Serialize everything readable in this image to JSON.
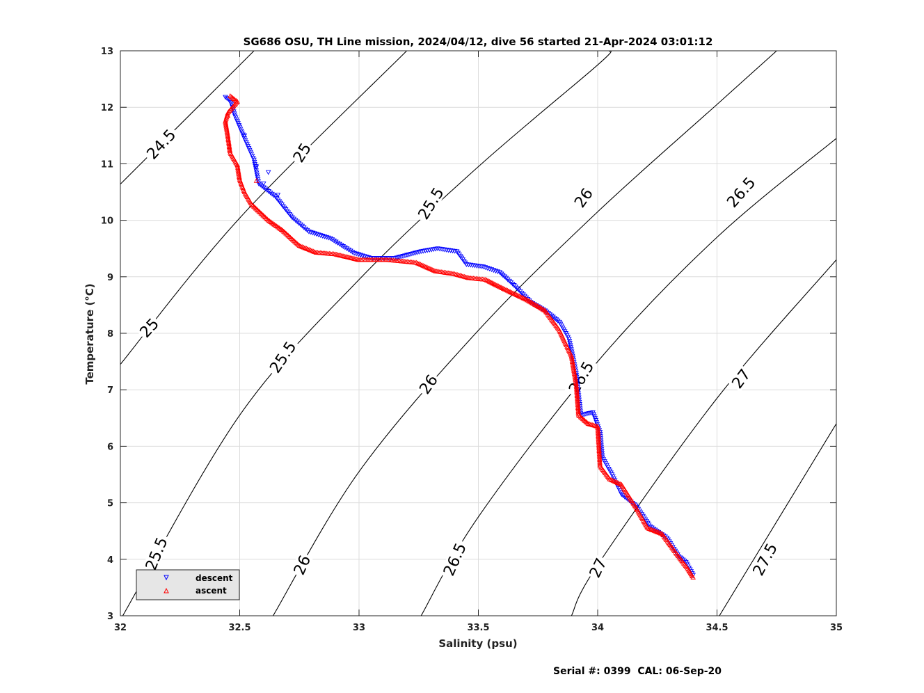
{
  "footer": "Serial #: 0399  CAL: 06-Sep-20",
  "chart_data": {
    "type": "scatter",
    "title": "SG686 OSU, TH Line mission, 2024/04/12, dive 56 started 21-Apr-2024 03:01:12",
    "xlabel": "Salinity (psu)",
    "ylabel": "Temperature (°C)",
    "xlim": [
      32,
      35
    ],
    "ylim": [
      3,
      13
    ],
    "xticks": [
      32,
      32.5,
      33,
      33.5,
      34,
      34.5,
      35
    ],
    "xtick_labels": [
      "32",
      "32.5",
      "33",
      "33.5",
      "34",
      "34.5",
      "35"
    ],
    "yticks": [
      3,
      4,
      5,
      6,
      7,
      8,
      9,
      10,
      11,
      12,
      13
    ],
    "ytick_labels": [
      "3",
      "4",
      "5",
      "6",
      "7",
      "8",
      "9",
      "10",
      "11",
      "12",
      "13"
    ],
    "grid": true,
    "legend_position": "bottom-left",
    "density_contours": {
      "levels": [
        {
          "label": "24.5",
          "points": [
            [
              32,
              10.64
            ],
            [
              32.56,
              13
            ]
          ]
        },
        {
          "label": "25",
          "points": [
            [
              32,
              7.45
            ],
            [
              32.5,
              10.04
            ],
            [
              33.2,
              13
            ]
          ]
        },
        {
          "label": "25.5",
          "points": [
            [
              32.01,
              3
            ],
            [
              32.5,
              6.55
            ],
            [
              33,
              8.95
            ],
            [
              33.5,
              10.95
            ],
            [
              34.0,
              12.75
            ],
            [
              34.05,
              13
            ]
          ]
        },
        {
          "label": "26",
          "points": [
            [
              32.64,
              3
            ],
            [
              33,
              5.55
            ],
            [
              33.5,
              8.05
            ],
            [
              34,
              10.15
            ],
            [
              34.5,
              12.05
            ],
            [
              34.75,
              13
            ]
          ]
        },
        {
          "label": "26.5",
          "points": [
            [
              33.26,
              3
            ],
            [
              33.5,
              4.75
            ],
            [
              34,
              7.5
            ],
            [
              34.5,
              9.7
            ],
            [
              35,
              11.45
            ]
          ]
        },
        {
          "label": "27",
          "points": [
            [
              33.89,
              3
            ],
            [
              34,
              3.9
            ],
            [
              34.5,
              6.85
            ],
            [
              35,
              9.3
            ]
          ]
        },
        {
          "label": "27.5",
          "points": [
            [
              34.51,
              3
            ],
            [
              35,
              6.4
            ]
          ]
        }
      ],
      "labels": [
        {
          "text": "24.5",
          "x": 32.17,
          "y": 11.35,
          "angle": -47
        },
        {
          "text": "25",
          "x": 32.76,
          "y": 11.2,
          "angle": -58
        },
        {
          "text": "25",
          "x": 32.12,
          "y": 8.1,
          "angle": -47
        },
        {
          "text": "25.5",
          "x": 33.3,
          "y": 10.3,
          "angle": -58
        },
        {
          "text": "25.5",
          "x": 32.68,
          "y": 7.58,
          "angle": -56
        },
        {
          "text": "25.5",
          "x": 32.15,
          "y": 4.1,
          "angle": -68
        },
        {
          "text": "26",
          "x": 33.94,
          "y": 10.4,
          "angle": -55
        },
        {
          "text": "26",
          "x": 33.29,
          "y": 7.1,
          "angle": -55
        },
        {
          "text": "26",
          "x": 32.76,
          "y": 3.9,
          "angle": -66
        },
        {
          "text": "26.5",
          "x": 34.6,
          "y": 10.5,
          "angle": -49
        },
        {
          "text": "26.5",
          "x": 33.93,
          "y": 7.22,
          "angle": -60
        },
        {
          "text": "26.5",
          "x": 33.4,
          "y": 4.0,
          "angle": -66
        },
        {
          "text": "27",
          "x": 34.6,
          "y": 7.2,
          "angle": -53
        },
        {
          "text": "27",
          "x": 34.0,
          "y": 3.85,
          "angle": -64
        },
        {
          "text": "27.5",
          "x": 34.7,
          "y": 4.0,
          "angle": -62
        }
      ]
    },
    "series": [
      {
        "name": "descent",
        "marker": "triangle-down",
        "color": "#0000ff",
        "anchors": [
          [
            32.44,
            12.18
          ],
          [
            32.46,
            12.12
          ],
          [
            32.47,
            12.0
          ],
          [
            32.48,
            11.85
          ],
          [
            32.52,
            11.45
          ],
          [
            32.56,
            11.07
          ],
          [
            32.58,
            10.65
          ],
          [
            32.65,
            10.42
          ],
          [
            32.72,
            10.05
          ],
          [
            32.79,
            9.8
          ],
          [
            32.88,
            9.68
          ],
          [
            32.98,
            9.42
          ],
          [
            33.05,
            9.33
          ],
          [
            33.15,
            9.33
          ],
          [
            33.26,
            9.45
          ],
          [
            33.33,
            9.5
          ],
          [
            33.41,
            9.45
          ],
          [
            33.45,
            9.22
          ],
          [
            33.52,
            9.18
          ],
          [
            33.59,
            9.08
          ],
          [
            33.65,
            8.85
          ],
          [
            33.72,
            8.55
          ],
          [
            33.78,
            8.4
          ],
          [
            33.84,
            8.2
          ],
          [
            33.88,
            7.9
          ],
          [
            33.91,
            7.3
          ],
          [
            33.92,
            6.9
          ],
          [
            33.93,
            6.55
          ],
          [
            33.98,
            6.6
          ],
          [
            34.01,
            6.25
          ],
          [
            34.02,
            5.8
          ],
          [
            34.06,
            5.5
          ],
          [
            34.1,
            5.15
          ],
          [
            34.16,
            4.95
          ],
          [
            34.22,
            4.58
          ],
          [
            34.29,
            4.38
          ],
          [
            34.34,
            4.05
          ],
          [
            34.37,
            3.95
          ],
          [
            34.4,
            3.72
          ]
        ],
        "scatter_points": [
          [
            32.57,
            10.95
          ],
          [
            32.62,
            10.85
          ],
          [
            32.6,
            10.65
          ],
          [
            32.66,
            10.45
          ],
          [
            32.52,
            11.5
          ]
        ]
      },
      {
        "name": "ascent",
        "marker": "triangle-up",
        "color": "#ff0000",
        "anchors": [
          [
            32.46,
            12.2
          ],
          [
            32.49,
            12.1
          ],
          [
            32.47,
            12.0
          ],
          [
            32.45,
            11.9
          ],
          [
            32.44,
            11.75
          ],
          [
            32.45,
            11.5
          ],
          [
            32.46,
            11.2
          ],
          [
            32.49,
            10.98
          ],
          [
            32.5,
            10.72
          ],
          [
            32.52,
            10.5
          ],
          [
            32.55,
            10.28
          ],
          [
            32.62,
            10.0
          ],
          [
            32.68,
            9.82
          ],
          [
            32.75,
            9.55
          ],
          [
            32.82,
            9.43
          ],
          [
            32.9,
            9.4
          ],
          [
            33.0,
            9.3
          ],
          [
            33.12,
            9.3
          ],
          [
            33.24,
            9.25
          ],
          [
            33.32,
            9.1
          ],
          [
            33.4,
            9.05
          ],
          [
            33.46,
            8.98
          ],
          [
            33.53,
            8.95
          ],
          [
            33.6,
            8.8
          ],
          [
            33.7,
            8.6
          ],
          [
            33.78,
            8.4
          ],
          [
            33.84,
            8.05
          ],
          [
            33.89,
            7.6
          ],
          [
            33.91,
            7.1
          ],
          [
            33.92,
            6.55
          ],
          [
            33.96,
            6.4
          ],
          [
            34.0,
            6.35
          ],
          [
            34.01,
            5.65
          ],
          [
            34.05,
            5.42
          ],
          [
            34.1,
            5.32
          ],
          [
            34.16,
            4.92
          ],
          [
            34.21,
            4.55
          ],
          [
            34.27,
            4.45
          ],
          [
            34.33,
            4.1
          ],
          [
            34.38,
            3.82
          ],
          [
            34.4,
            3.68
          ]
        ],
        "scatter_points": [
          [
            32.57,
            10.7
          ],
          [
            32.45,
            11.85
          ]
        ]
      }
    ]
  }
}
